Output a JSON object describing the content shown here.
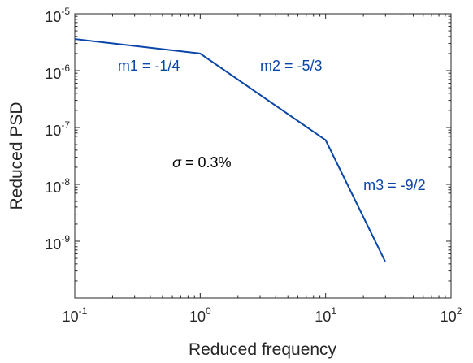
{
  "chart_data": {
    "type": "line",
    "xscale": "log",
    "yscale": "log",
    "xlabel": "Reduced frequency",
    "ylabel": "Reduced PSD",
    "xlim": [
      0.1,
      100
    ],
    "ylim": [
      1e-10,
      1e-05
    ],
    "x_ticks": [
      {
        "base": "10",
        "exp": "-1",
        "value": 0.1
      },
      {
        "base": "10",
        "exp": "0",
        "value": 1
      },
      {
        "base": "10",
        "exp": "1",
        "value": 10
      },
      {
        "base": "10",
        "exp": "2",
        "value": 100
      }
    ],
    "y_ticks": [
      {
        "base": "10",
        "exp": "-9",
        "value": 1e-09
      },
      {
        "base": "10",
        "exp": "-8",
        "value": 1e-08
      },
      {
        "base": "10",
        "exp": "-7",
        "value": 1e-07
      },
      {
        "base": "10",
        "exp": "-6",
        "value": 1e-06
      },
      {
        "base": "10",
        "exp": "-5",
        "value": 1e-05
      }
    ],
    "grid": false,
    "box": true,
    "series": [
      {
        "color": "#0a46a8",
        "x": [
          0.1,
          1,
          10,
          30
        ],
        "y": [
          3.6e-06,
          2e-06,
          6e-08,
          4.3e-10
        ]
      }
    ],
    "annotations": [
      {
        "text": "m1 = -1/4",
        "x": 0.22,
        "y": 1e-06,
        "color": "#0a46a8"
      },
      {
        "text": "m2 = -5/3",
        "x": 3.0,
        "y": 1e-06,
        "color": "#0a46a8"
      },
      {
        "symbol": "σ",
        "text": " = 0.3%",
        "x": 0.6,
        "y": 2e-08,
        "color": "#000000"
      },
      {
        "text": "m3 = -9/2",
        "x": 20.0,
        "y": 8e-09,
        "color": "#0a46a8"
      }
    ]
  }
}
